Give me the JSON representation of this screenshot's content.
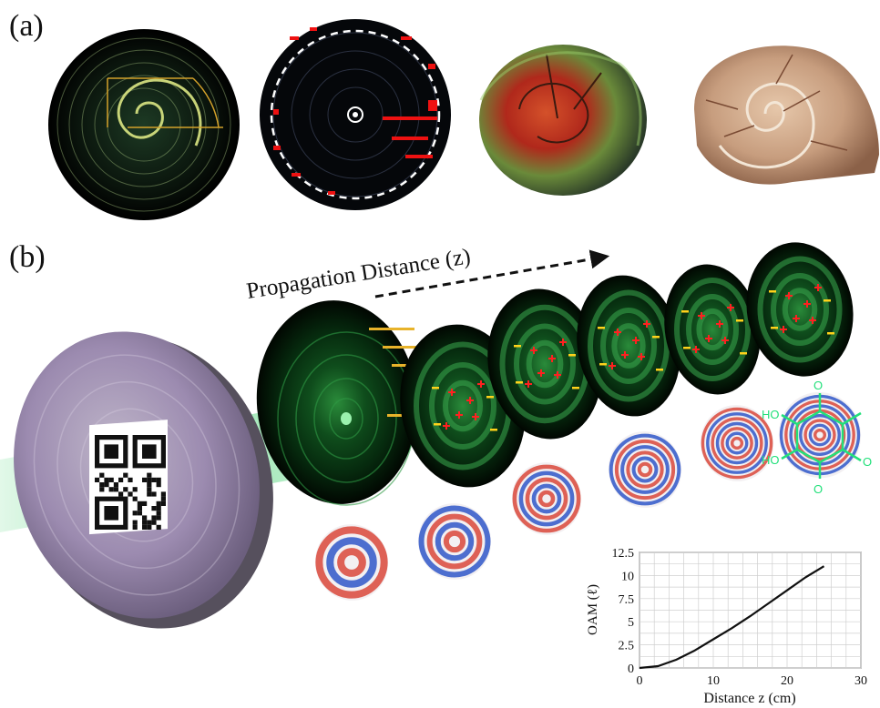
{
  "panels": {
    "a": {
      "label": "(a)"
    },
    "b": {
      "label": "(b)",
      "arrow_label": "Propagation  Distance (z)"
    }
  },
  "colors": {
    "beam_green": "#3dcf6a",
    "marker_red": "#ff2020",
    "marker_yellow": "#ffd21a",
    "phase_red": "#d9483b",
    "phase_blue": "#2f57c9"
  },
  "chart_data": {
    "type": "line",
    "title": "",
    "xlabel": "Distance z (cm)",
    "ylabel": "OAM (ℓ)",
    "xlim": [
      0,
      30
    ],
    "ylim": [
      0,
      12.5
    ],
    "xticks": [
      "0",
      "10",
      "20",
      "30"
    ],
    "yticks": [
      "0",
      "2.5",
      "5",
      "7.5",
      "10",
      "12.5"
    ],
    "grid": true,
    "series": [
      {
        "x": [
          0,
          2.5,
          5,
          7.5,
          10,
          12.5,
          15,
          17.5,
          20,
          22.5,
          25
        ],
        "y": [
          0,
          0.2,
          0.9,
          1.9,
          3.1,
          4.3,
          5.6,
          7.0,
          8.4,
          9.8,
          11.0
        ]
      }
    ]
  }
}
